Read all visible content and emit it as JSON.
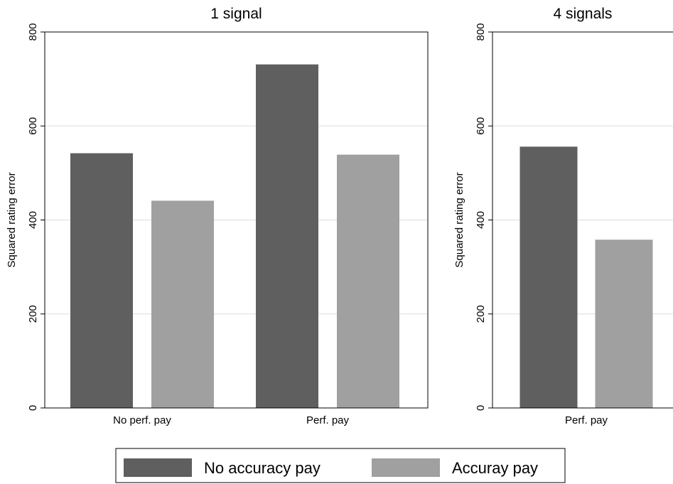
{
  "chart_data": [
    {
      "type": "bar",
      "title": "1 signal",
      "y_label": "Squared rating error",
      "categories": [
        "No perf. pay",
        "Perf. pay"
      ],
      "series": [
        {
          "name": "No accuracy pay",
          "color": "#5f5f5f",
          "values": [
            542,
            731
          ]
        },
        {
          "name": "Accuray pay",
          "color": "#a0a0a0",
          "values": [
            441,
            539
          ]
        }
      ],
      "ylim": [
        0,
        800
      ],
      "yticks": [
        0,
        200,
        400,
        600,
        800
      ],
      "grid": true
    },
    {
      "type": "bar",
      "title": "4 signals",
      "y_label": "Squared rating error",
      "categories": [
        "Perf. pay"
      ],
      "series": [
        {
          "color": "#5f5f5f",
          "values": [
            556
          ]
        },
        {
          "color": "#a0a0a0",
          "values": [
            358
          ]
        }
      ],
      "ylim": [
        0,
        800
      ],
      "yticks": [
        0,
        200,
        400,
        600,
        800
      ],
      "grid": true
    }
  ]
}
